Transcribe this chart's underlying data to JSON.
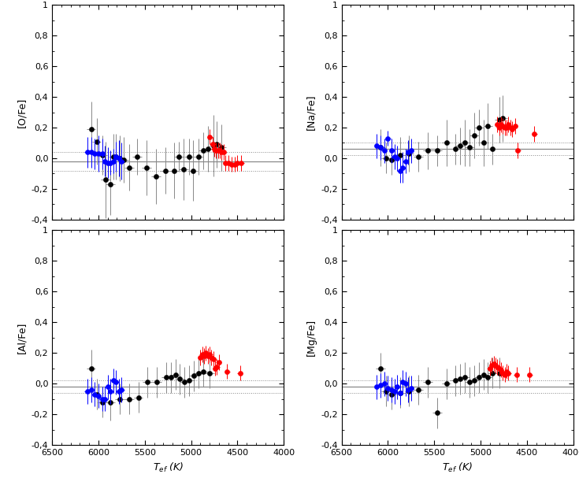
{
  "xlim": [
    4000,
    6500
  ],
  "ylim": [
    -0.4,
    1.0
  ],
  "yticks": [
    -0.4,
    -0.2,
    0.0,
    0.2,
    0.4,
    0.6,
    0.8,
    1.0
  ],
  "xticks": [
    4000,
    4500,
    5000,
    5500,
    6000,
    6500
  ],
  "xlabel": "T$_{ef}$ (K)",
  "ylabel_ofe": "[O/Fe]",
  "ylabel_nafe": "[Na/Fe]",
  "ylabel_alfe": "[Al/Fe]",
  "ylabel_mgfe": "[Mg/Fe]",
  "black_color": "#000000",
  "blue_color": "#0000FF",
  "red_color": "#FF0000",
  "gray_color": "#888888",
  "ofe_black_x": [
    6080,
    6020,
    5960,
    5920,
    5870,
    5840,
    5810,
    5770,
    5730,
    5670,
    5580,
    5480,
    5380,
    5280,
    5180,
    5130,
    5080,
    5020,
    4980,
    4920,
    4870,
    4820,
    4760,
    4720,
    4670
  ],
  "ofe_black_y": [
    0.19,
    0.11,
    0.02,
    -0.14,
    -0.17,
    0.01,
    0.01,
    0.0,
    -0.01,
    -0.06,
    0.01,
    -0.06,
    -0.12,
    -0.08,
    -0.08,
    0.01,
    -0.07,
    0.01,
    -0.08,
    0.01,
    0.05,
    0.06,
    0.08,
    0.09,
    0.07
  ],
  "ofe_black_xerr": [
    50,
    50,
    50,
    50,
    50,
    50,
    50,
    50,
    50,
    50,
    50,
    50,
    50,
    50,
    50,
    50,
    50,
    50,
    50,
    50,
    50,
    50,
    50,
    50,
    50
  ],
  "ofe_black_yerr": [
    0.18,
    0.15,
    0.13,
    0.25,
    0.2,
    0.15,
    0.15,
    0.15,
    0.15,
    0.15,
    0.12,
    0.18,
    0.18,
    0.15,
    0.18,
    0.1,
    0.2,
    0.12,
    0.2,
    0.12,
    0.12,
    0.15,
    0.2,
    0.15,
    0.15
  ],
  "ofe_blue_x": [
    6120,
    6080,
    6040,
    6000,
    5960,
    5930,
    5900,
    5870,
    5840,
    5810,
    5780,
    5750
  ],
  "ofe_blue_y": [
    0.04,
    0.04,
    0.03,
    0.03,
    0.03,
    -0.02,
    -0.03,
    -0.03,
    -0.02,
    0.01,
    0.0,
    -0.02
  ],
  "ofe_blue_xerr": [
    30,
    30,
    30,
    30,
    30,
    30,
    30,
    30,
    30,
    30,
    30,
    30
  ],
  "ofe_blue_yerr": [
    0.1,
    0.1,
    0.1,
    0.12,
    0.1,
    0.1,
    0.1,
    0.08,
    0.08,
    0.1,
    0.12,
    0.12
  ],
  "ofe_red_x": [
    4800,
    4770,
    4750,
    4730,
    4710,
    4690,
    4670,
    4650,
    4630,
    4600,
    4560,
    4530,
    4500,
    4460
  ],
  "ofe_red_y": [
    0.14,
    0.09,
    0.06,
    0.05,
    0.05,
    0.05,
    0.04,
    0.04,
    -0.03,
    -0.03,
    -0.04,
    -0.04,
    -0.03,
    -0.03
  ],
  "ofe_red_xerr": [
    30,
    30,
    30,
    30,
    30,
    30,
    30,
    30,
    30,
    30,
    30,
    30,
    30,
    30
  ],
  "ofe_red_yerr": [
    0.05,
    0.05,
    0.05,
    0.05,
    0.05,
    0.05,
    0.05,
    0.05,
    0.05,
    0.05,
    0.05,
    0.05,
    0.05,
    0.05
  ],
  "ofe_hline": -0.02,
  "ofe_dotted1": 0.04,
  "ofe_dotted2": -0.08,
  "nafe_black_x": [
    6080,
    6020,
    5960,
    5870,
    5770,
    5670,
    5570,
    5470,
    5370,
    5270,
    5220,
    5170,
    5120,
    5070,
    5020,
    4970,
    4920,
    4870,
    4800,
    4760
  ],
  "nafe_black_y": [
    0.07,
    0.0,
    -0.01,
    0.02,
    0.03,
    0.01,
    0.05,
    0.05,
    0.1,
    0.06,
    0.08,
    0.1,
    0.07,
    0.15,
    0.2,
    0.1,
    0.21,
    0.06,
    0.25,
    0.26
  ],
  "nafe_black_xerr": [
    50,
    50,
    50,
    50,
    50,
    50,
    50,
    50,
    50,
    50,
    50,
    50,
    50,
    50,
    50,
    50,
    50,
    50,
    50,
    50
  ],
  "nafe_black_yerr": [
    0.12,
    0.1,
    0.1,
    0.12,
    0.12,
    0.1,
    0.12,
    0.1,
    0.15,
    0.1,
    0.12,
    0.15,
    0.12,
    0.15,
    0.12,
    0.15,
    0.15,
    0.1,
    0.15,
    0.15
  ],
  "nafe_blue_x": [
    6120,
    6080,
    6040,
    6000,
    5960,
    5930,
    5900,
    5870,
    5840,
    5810,
    5780,
    5750
  ],
  "nafe_blue_y": [
    0.08,
    0.07,
    0.05,
    0.13,
    0.05,
    0.01,
    0.0,
    -0.08,
    -0.06,
    -0.02,
    0.04,
    0.05
  ],
  "nafe_blue_xerr": [
    30,
    30,
    30,
    30,
    30,
    30,
    30,
    30,
    30,
    30,
    30,
    30
  ],
  "nafe_blue_yerr": [
    0.08,
    0.08,
    0.08,
    0.05,
    0.08,
    0.08,
    0.08,
    0.08,
    0.1,
    0.08,
    0.08,
    0.08
  ],
  "nafe_red_x": [
    4820,
    4800,
    4780,
    4760,
    4740,
    4720,
    4700,
    4680,
    4660,
    4630,
    4600,
    4420
  ],
  "nafe_red_y": [
    0.22,
    0.2,
    0.22,
    0.21,
    0.2,
    0.2,
    0.22,
    0.2,
    0.19,
    0.21,
    0.05,
    0.16
  ],
  "nafe_red_xerr": [
    30,
    30,
    30,
    30,
    30,
    30,
    30,
    30,
    30,
    30,
    30,
    30
  ],
  "nafe_red_yerr": [
    0.05,
    0.05,
    0.05,
    0.05,
    0.05,
    0.05,
    0.05,
    0.05,
    0.05,
    0.05,
    0.05,
    0.05
  ],
  "nafe_hline": 0.06,
  "nafe_dotted1": 0.1,
  "nafe_dotted2": 0.02,
  "alfe_black_x": [
    6080,
    6020,
    5960,
    5870,
    5770,
    5670,
    5570,
    5470,
    5370,
    5270,
    5220,
    5170,
    5120,
    5070,
    5020,
    4970,
    4920,
    4870,
    4800
  ],
  "alfe_black_y": [
    0.1,
    -0.07,
    -0.12,
    -0.12,
    -0.1,
    -0.1,
    -0.09,
    0.01,
    0.01,
    0.04,
    0.04,
    0.06,
    0.03,
    0.01,
    0.02,
    0.05,
    0.07,
    0.08,
    0.07
  ],
  "alfe_black_xerr": [
    50,
    50,
    50,
    50,
    50,
    50,
    50,
    50,
    50,
    50,
    50,
    50,
    50,
    50,
    50,
    50,
    50,
    50,
    50
  ],
  "alfe_black_yerr": [
    0.12,
    0.1,
    0.1,
    0.12,
    0.1,
    0.1,
    0.1,
    0.1,
    0.1,
    0.1,
    0.1,
    0.1,
    0.1,
    0.1,
    0.1,
    0.1,
    0.1,
    0.1,
    0.1
  ],
  "alfe_blue_x": [
    6120,
    6080,
    6040,
    6000,
    5960,
    5930,
    5900,
    5870,
    5840,
    5810,
    5780,
    5750
  ],
  "alfe_blue_y": [
    -0.05,
    -0.04,
    -0.07,
    -0.08,
    -0.1,
    -0.1,
    -0.02,
    -0.05,
    0.02,
    0.01,
    -0.05,
    -0.04
  ],
  "alfe_blue_xerr": [
    30,
    30,
    30,
    30,
    30,
    30,
    30,
    30,
    30,
    30,
    30,
    30
  ],
  "alfe_blue_yerr": [
    0.08,
    0.08,
    0.08,
    0.08,
    0.08,
    0.08,
    0.08,
    0.08,
    0.08,
    0.08,
    0.08,
    0.08
  ],
  "alfe_red_x": [
    4900,
    4880,
    4860,
    4840,
    4820,
    4800,
    4780,
    4760,
    4740,
    4720,
    4700,
    4610,
    4470
  ],
  "alfe_red_y": [
    0.17,
    0.19,
    0.18,
    0.2,
    0.18,
    0.19,
    0.17,
    0.16,
    0.1,
    0.11,
    0.14,
    0.08,
    0.07
  ],
  "alfe_red_xerr": [
    30,
    30,
    30,
    30,
    30,
    30,
    30,
    30,
    30,
    30,
    30,
    30,
    30
  ],
  "alfe_red_yerr": [
    0.05,
    0.05,
    0.05,
    0.05,
    0.05,
    0.05,
    0.05,
    0.05,
    0.05,
    0.05,
    0.05,
    0.05,
    0.05
  ],
  "alfe_hline": -0.02,
  "alfe_dotted1": 0.02,
  "alfe_dotted2": -0.06,
  "mgfe_black_x": [
    6080,
    6020,
    5960,
    5870,
    5770,
    5670,
    5570,
    5470,
    5370,
    5270,
    5220,
    5170,
    5120,
    5070,
    5020,
    4970,
    4920,
    4870,
    4800
  ],
  "mgfe_black_y": [
    0.1,
    -0.05,
    -0.07,
    -0.06,
    -0.05,
    -0.04,
    0.01,
    -0.19,
    0.0,
    0.02,
    0.03,
    0.04,
    0.01,
    0.02,
    0.04,
    0.06,
    0.04,
    0.07,
    0.07
  ],
  "mgfe_black_xerr": [
    50,
    50,
    50,
    50,
    50,
    50,
    50,
    50,
    50,
    50,
    50,
    50,
    50,
    50,
    50,
    50,
    50,
    50,
    50
  ],
  "mgfe_black_yerr": [
    0.1,
    0.1,
    0.1,
    0.1,
    0.1,
    0.1,
    0.1,
    0.1,
    0.1,
    0.1,
    0.1,
    0.1,
    0.1,
    0.1,
    0.1,
    0.1,
    0.1,
    0.1,
    0.1
  ],
  "mgfe_blue_x": [
    6120,
    6080,
    6040,
    6000,
    5960,
    5930,
    5900,
    5870,
    5840,
    5810,
    5780,
    5750
  ],
  "mgfe_blue_y": [
    -0.02,
    -0.01,
    0.0,
    -0.03,
    -0.04,
    -0.05,
    -0.02,
    -0.06,
    0.01,
    0.0,
    -0.04,
    -0.03
  ],
  "mgfe_blue_xerr": [
    30,
    30,
    30,
    30,
    30,
    30,
    30,
    30,
    30,
    30,
    30,
    30
  ],
  "mgfe_blue_yerr": [
    0.08,
    0.08,
    0.08,
    0.08,
    0.08,
    0.08,
    0.08,
    0.08,
    0.08,
    0.08,
    0.08,
    0.08
  ],
  "mgfe_red_x": [
    4900,
    4880,
    4860,
    4840,
    4820,
    4800,
    4780,
    4760,
    4740,
    4720,
    4700,
    4610,
    4470
  ],
  "mgfe_red_y": [
    0.1,
    0.12,
    0.13,
    0.12,
    0.11,
    0.1,
    0.09,
    0.07,
    0.06,
    0.08,
    0.07,
    0.06,
    0.06
  ],
  "mgfe_red_xerr": [
    30,
    30,
    30,
    30,
    30,
    30,
    30,
    30,
    30,
    30,
    30,
    30,
    30
  ],
  "mgfe_red_yerr": [
    0.05,
    0.05,
    0.05,
    0.05,
    0.05,
    0.05,
    0.05,
    0.05,
    0.05,
    0.05,
    0.05,
    0.05,
    0.05
  ],
  "mgfe_hline": -0.02,
  "mgfe_dotted1": 0.02,
  "mgfe_dotted2": -0.06
}
